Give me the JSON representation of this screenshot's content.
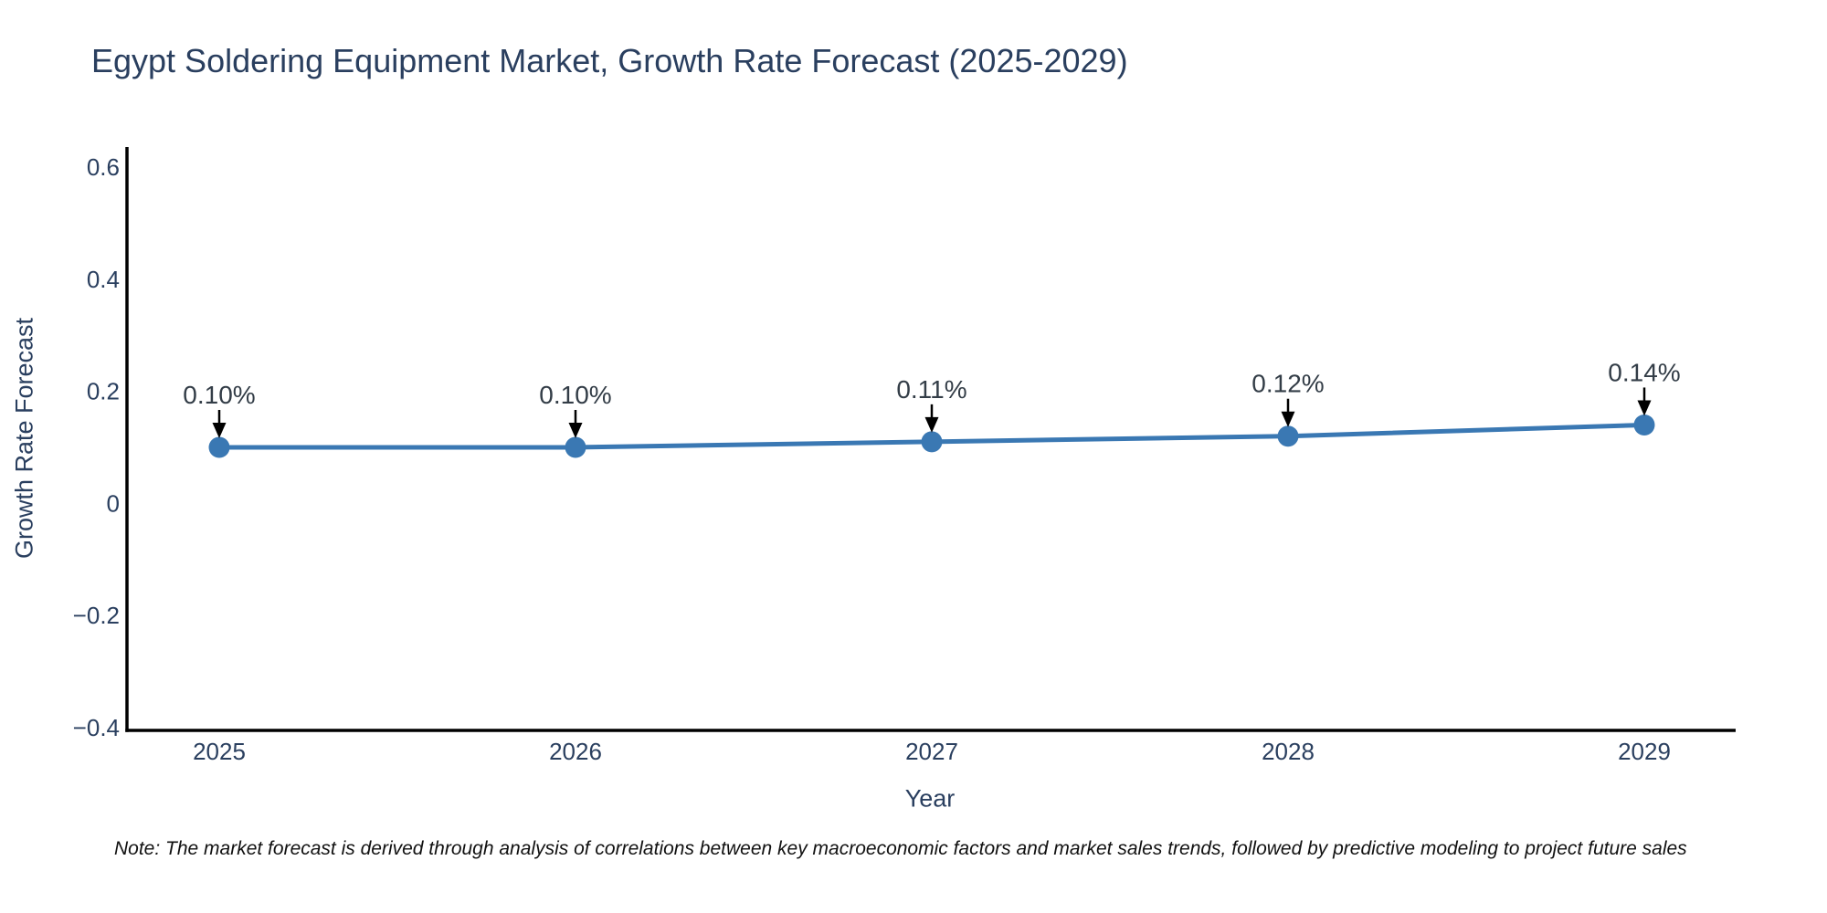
{
  "page": {
    "background": "#ffffff"
  },
  "colors": {
    "title_text": "#2a3f5f",
    "axis_text": "#2a3f5f",
    "annotation_text": "#333d47",
    "series_blue": "#3a78b3",
    "axis_line": "#000000",
    "arrow": "#000000",
    "note_text": "#111111"
  },
  "note": {
    "text": "Note: The market forecast is derived through analysis of correlations between key macroeconomic factors and market sales trends, followed by predictive modeling to project future sales"
  },
  "chart_data": {
    "type": "line",
    "title": "Egypt Soldering Equipment Market, Growth Rate Forecast (2025-2029)",
    "xlabel": "Year",
    "ylabel": "Growth Rate Forecast",
    "x": [
      2025,
      2026,
      2027,
      2028,
      2029
    ],
    "xtick_labels": [
      "2025",
      "2026",
      "2027",
      "2028",
      "2029"
    ],
    "series": [
      {
        "name": "Growth Rate Forecast",
        "values": [
          0.1,
          0.1,
          0.11,
          0.12,
          0.14
        ]
      }
    ],
    "point_labels": [
      "0.10%",
      "0.10%",
      "0.11%",
      "0.12%",
      "0.14%"
    ],
    "ylim": [
      -0.4,
      0.6
    ],
    "yticks": [
      0.6,
      0.4,
      0.2,
      0,
      -0.2,
      -0.4
    ],
    "ytick_labels": [
      "0.6",
      "0.4",
      "0.2",
      "0",
      "−0.2",
      "−0.4"
    ],
    "grid": false,
    "legend": false,
    "marker": "circle",
    "annotation_style": "arrow-down-to-point"
  }
}
